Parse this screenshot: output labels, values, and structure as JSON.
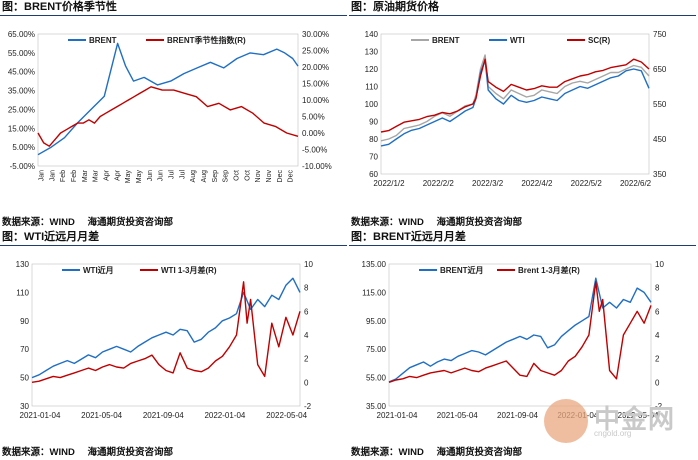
{
  "panels": [
    {
      "title": "图：BRENT价格季节性",
      "source": [
        "数据来源：WIND",
        "海通期货投资咨询部"
      ]
    },
    {
      "title": "图：原油期货价格",
      "source": [
        "数据来源：WIND",
        "海通期货投资咨询部"
      ]
    },
    {
      "title": "图：WTI近远月月差",
      "source": [
        "数据来源：WIND",
        "海通期货投资咨询部"
      ]
    },
    {
      "title": "图：BRENT近远月月差",
      "source": [
        "数据来源：WIND",
        "海通期货投资咨询部"
      ]
    }
  ],
  "watermark": {
    "text": "中金网",
    "sub": "cngold.org"
  },
  "colors": {
    "blue": "#1f6fc4",
    "red": "#c00000",
    "gray": "#a6a6a6"
  },
  "chart_data": [
    {
      "type": "line",
      "title": "BRENT价格季节性",
      "categories": [
        "Jan",
        "Jan",
        "Feb",
        "Feb",
        "Mar",
        "Mar",
        "Apr",
        "Apr",
        "May",
        "May",
        "Jun",
        "Jun",
        "Jul",
        "Jul",
        "Aug",
        "Aug",
        "Sep",
        "Sep",
        "Oct",
        "Oct",
        "Nov",
        "Nov",
        "Dec",
        "Dec"
      ],
      "y_left_ticks": [
        "65.00%",
        "55.00%",
        "45.00%",
        "35.00%",
        "25.00%",
        "15.00%",
        "5.00%",
        "-5.00%"
      ],
      "y_right_ticks": [
        "30.00%",
        "25.00%",
        "20.00%",
        "15.00%",
        "10.00%",
        "5.00%",
        "0.00%",
        "-5.00%",
        "-10.00%"
      ],
      "ylim_left": [
        -5,
        65
      ],
      "ylim_right": [
        -10,
        30
      ],
      "legend": "top-center",
      "series": [
        {
          "name": "BRENT",
          "axis": "left",
          "color": "#1f6fc4",
          "x": [
            0,
            0.5,
            1,
            1.5,
            2,
            2.5,
            3,
            3.3,
            3.6,
            4,
            4.5,
            5,
            5.5,
            6,
            6.5,
            7,
            7.5,
            8,
            8.5,
            9,
            9.3,
            9.6,
            9.8
          ],
          "values": [
            1,
            5,
            10,
            18,
            25,
            32,
            60,
            48,
            40,
            42,
            38,
            40,
            44,
            47,
            50,
            47,
            52,
            55,
            54,
            57,
            55,
            52,
            48
          ]
        },
        {
          "name": "BRENT季节性指数(R)",
          "axis": "right",
          "color": "#c00000",
          "x": [
            0,
            0.5,
            1,
            1.5,
            2,
            2.5,
            3,
            3.5,
            4,
            4.5,
            5,
            5.5,
            6,
            6.5,
            7,
            7.5,
            8,
            8.5,
            9,
            9.5,
            10,
            11,
            12,
            13,
            14,
            15,
            16,
            17,
            18,
            19,
            20,
            21,
            22,
            23
          ],
          "values": [
            0,
            -3,
            -4,
            -2,
            0,
            1,
            2,
            3,
            3,
            4,
            3,
            5,
            6,
            7,
            8,
            9,
            10,
            11,
            12,
            13,
            14,
            13,
            13,
            12,
            11,
            8,
            9,
            7,
            8,
            6,
            3,
            2,
            0,
            -1
          ]
        }
      ]
    },
    {
      "type": "line",
      "title": "原油期货价格",
      "categories": [
        "2022/1/2",
        "2022/2/2",
        "2022/3/2",
        "2022/4/2",
        "2022/5/2",
        "2022/6/2"
      ],
      "y_left_ticks": [
        "140",
        "130",
        "120",
        "110",
        "100",
        "90",
        "80",
        "70",
        "60"
      ],
      "y_right_ticks": [
        "750",
        "650",
        "550",
        "450",
        "350"
      ],
      "ylim_left": [
        60,
        140
      ],
      "ylim_right": [
        350,
        850
      ],
      "legend": "top-center",
      "series": [
        {
          "name": "BRENT",
          "axis": "left",
          "color": "#a6a6a6",
          "x": [
            0,
            5,
            10,
            15,
            20,
            25,
            30,
            35,
            40,
            45,
            50,
            55,
            60,
            62,
            65,
            68,
            70,
            75,
            80,
            85,
            90,
            95,
            100,
            105,
            110,
            115,
            120,
            125,
            130,
            135,
            140,
            145,
            150,
            155,
            160,
            165,
            170,
            175
          ],
          "values": [
            79,
            80,
            82,
            86,
            87,
            88,
            90,
            93,
            95,
            93,
            96,
            99,
            100,
            105,
            120,
            128,
            110,
            106,
            103,
            108,
            106,
            104,
            105,
            108,
            107,
            106,
            110,
            112,
            113,
            112,
            114,
            116,
            118,
            118,
            120,
            122,
            121,
            116
          ]
        },
        {
          "name": "WTI",
          "axis": "left",
          "color": "#1f6fc4",
          "x": [
            0,
            5,
            10,
            15,
            20,
            25,
            30,
            35,
            40,
            45,
            50,
            55,
            60,
            62,
            65,
            68,
            70,
            75,
            80,
            85,
            90,
            95,
            100,
            105,
            110,
            115,
            120,
            125,
            130,
            135,
            140,
            145,
            150,
            155,
            160,
            165,
            170,
            175
          ],
          "values": [
            76,
            77,
            80,
            83,
            85,
            86,
            88,
            90,
            92,
            90,
            93,
            96,
            98,
            103,
            118,
            125,
            108,
            103,
            100,
            105,
            102,
            101,
            102,
            104,
            103,
            102,
            106,
            108,
            110,
            109,
            111,
            113,
            115,
            116,
            119,
            120,
            119,
            109
          ]
        },
        {
          "name": "SC(R)",
          "axis": "right",
          "color": "#c00000",
          "x": [
            0,
            5,
            10,
            15,
            20,
            25,
            30,
            35,
            40,
            45,
            50,
            55,
            60,
            62,
            65,
            68,
            70,
            75,
            80,
            85,
            90,
            95,
            100,
            105,
            110,
            115,
            120,
            125,
            130,
            135,
            140,
            145,
            150,
            155,
            160,
            165,
            170,
            175
          ],
          "values": [
            500,
            505,
            520,
            535,
            540,
            545,
            555,
            560,
            570,
            565,
            575,
            590,
            600,
            620,
            700,
            760,
            680,
            660,
            645,
            670,
            660,
            650,
            655,
            665,
            660,
            660,
            680,
            690,
            700,
            705,
            715,
            720,
            730,
            735,
            740,
            760,
            750,
            725
          ]
        }
      ]
    },
    {
      "type": "line",
      "title": "WTI近远月月差",
      "categories": [
        "2021-01-04",
        "2021-05-04",
        "2021-09-04",
        "2022-01-04",
        "2022-05-04"
      ],
      "y_left_ticks": [
        "130",
        "110",
        "90",
        "70",
        "50",
        "30"
      ],
      "y_right_ticks": [
        "10",
        "8",
        "6",
        "4",
        "2",
        "0",
        "-2"
      ],
      "ylim_left": [
        30,
        130
      ],
      "ylim_right": [
        -2,
        10
      ],
      "legend": "top-center",
      "series": [
        {
          "name": "WTI近月",
          "axis": "left",
          "color": "#1f6fc4",
          "x": [
            0,
            2,
            4,
            6,
            8,
            10,
            12,
            14,
            16,
            18,
            20,
            22,
            24,
            26,
            28,
            30,
            32,
            34,
            36,
            38,
            40,
            42,
            44,
            46,
            48,
            50,
            52,
            54,
            56,
            58,
            60,
            62,
            64,
            66,
            68,
            70,
            72,
            74,
            76
          ],
          "values": [
            50,
            52,
            55,
            58,
            60,
            62,
            60,
            63,
            66,
            64,
            68,
            70,
            72,
            70,
            68,
            72,
            75,
            78,
            80,
            82,
            80,
            84,
            83,
            75,
            77,
            82,
            85,
            90,
            92,
            95,
            110,
            98,
            105,
            100,
            108,
            105,
            115,
            120,
            110
          ]
        },
        {
          "name": "WTI 1-3月差(R)",
          "axis": "right",
          "color": "#c00000",
          "x": [
            0,
            2,
            4,
            6,
            8,
            10,
            12,
            14,
            16,
            18,
            20,
            22,
            24,
            26,
            28,
            30,
            32,
            34,
            36,
            38,
            40,
            42,
            44,
            46,
            48,
            50,
            52,
            54,
            56,
            58,
            60,
            61,
            62,
            64,
            66,
            68,
            70,
            72,
            74,
            76
          ],
          "values": [
            0,
            0.1,
            0.3,
            0.5,
            0.4,
            0.6,
            0.8,
            1,
            1.2,
            1,
            1.3,
            1.5,
            1.3,
            1.2,
            1.6,
            1.8,
            2,
            2.3,
            1.5,
            1,
            0.8,
            2.5,
            1.2,
            1,
            0.9,
            1.2,
            1.8,
            2.2,
            3,
            4,
            8.5,
            5,
            7,
            1.5,
            0.5,
            5,
            3,
            5.5,
            4,
            6
          ]
        }
      ]
    },
    {
      "type": "line",
      "title": "BRENT近远月月差",
      "categories": [
        "2021-01-04",
        "2021-05-04",
        "2021-09-04",
        "2022-01-04",
        "2022-05-04"
      ],
      "y_left_ticks": [
        "135.00",
        "115.00",
        "95.00",
        "75.00",
        "55.00",
        "35.00"
      ],
      "y_right_ticks": [
        "10",
        "8",
        "6",
        "4",
        "2",
        "0",
        "-2"
      ],
      "ylim_left": [
        35,
        135
      ],
      "ylim_right": [
        -2,
        10
      ],
      "legend": "top-center",
      "series": [
        {
          "name": "BRENT近月",
          "axis": "left",
          "color": "#1f6fc4",
          "x": [
            0,
            2,
            4,
            6,
            8,
            10,
            12,
            14,
            16,
            18,
            20,
            22,
            24,
            26,
            28,
            30,
            32,
            34,
            36,
            38,
            40,
            42,
            44,
            46,
            48,
            50,
            52,
            54,
            56,
            58,
            60,
            62,
            64,
            66,
            68,
            70,
            72,
            74,
            76
          ],
          "values": [
            52,
            54,
            58,
            62,
            64,
            66,
            63,
            66,
            68,
            67,
            70,
            72,
            74,
            73,
            71,
            74,
            77,
            80,
            82,
            84,
            82,
            85,
            84,
            76,
            78,
            84,
            88,
            92,
            95,
            98,
            125,
            104,
            108,
            104,
            110,
            108,
            118,
            115,
            108
          ]
        },
        {
          "name": "Brent 1-3月差(R)",
          "axis": "right",
          "color": "#c00000",
          "x": [
            0,
            2,
            4,
            6,
            8,
            10,
            12,
            14,
            16,
            18,
            20,
            22,
            24,
            26,
            28,
            30,
            32,
            34,
            36,
            38,
            40,
            42,
            44,
            46,
            48,
            50,
            52,
            54,
            56,
            58,
            60,
            61,
            62,
            64,
            66,
            68,
            70,
            72,
            74,
            76
          ],
          "values": [
            0,
            0.2,
            0.3,
            0.5,
            0.4,
            0.6,
            0.8,
            0.9,
            1,
            0.8,
            1,
            1.2,
            1,
            0.9,
            1.2,
            1.4,
            1.6,
            1.8,
            1.2,
            0.6,
            0.5,
            1.6,
            1,
            0.8,
            0.6,
            1,
            1.8,
            2.2,
            3,
            4,
            8.5,
            6,
            7,
            1,
            0.3,
            4,
            5,
            6,
            5,
            6.5
          ]
        }
      ]
    }
  ]
}
